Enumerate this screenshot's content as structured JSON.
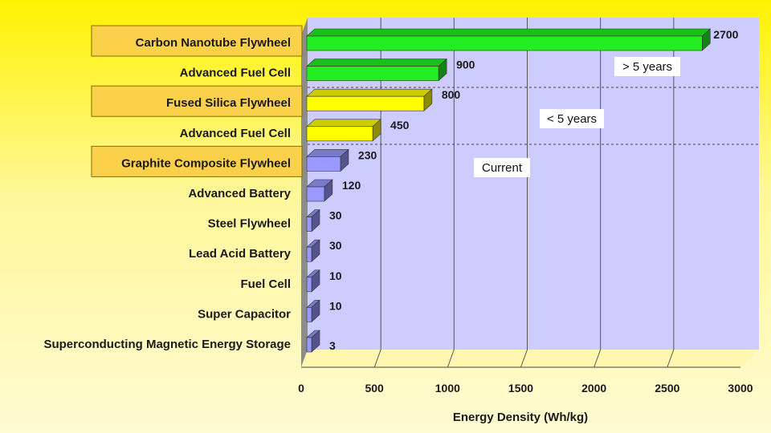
{
  "chart_data": {
    "type": "bar",
    "orientation": "horizontal",
    "categories": [
      "Carbon Nanotube Flywheel",
      "Advanced Fuel Cell",
      "Fused Silica Flywheel",
      "Advanced Fuel Cell",
      "Graphite Composite Flywheel",
      "Advanced Battery",
      "Steel Flywheel",
      "Lead Acid Battery",
      "Fuel Cell",
      "Super Capacitor",
      "Superconducting Magnetic Energy Storage"
    ],
    "values": [
      2700,
      900,
      800,
      450,
      230,
      120,
      30,
      30,
      10,
      10,
      3
    ],
    "value_labels": [
      "2700",
      "900",
      "800",
      "450",
      "230",
      "120",
      "30",
      "30",
      "10",
      "10",
      "3"
    ],
    "highlighted": [
      true,
      false,
      true,
      false,
      true,
      false,
      false,
      false,
      false,
      false,
      false
    ],
    "bar_groups": [
      "green",
      "green",
      "yellow",
      "yellow",
      "blue",
      "blue",
      "blue",
      "blue",
      "blue",
      "blue",
      "blue"
    ],
    "xlabel": "Energy Density (Wh/kg)",
    "ylabel": "",
    "title": "",
    "xlim": [
      0,
      3000
    ],
    "xticks": [
      0,
      500,
      1000,
      1500,
      2000,
      2500,
      3000
    ],
    "xtick_labels": [
      "0",
      "500",
      "1000",
      "1500",
      "2000",
      "2500",
      "3000"
    ],
    "grid": "vertical",
    "annotations": [
      "> 5 years",
      "< 5 years",
      "Current"
    ],
    "colors": {
      "green": "#22ee22",
      "yellow": "#ffff00",
      "blue": "#9999ff",
      "plot_bg": "#ccccff",
      "floor": "#fff7b0",
      "highlight_box": "#fbd04a"
    }
  }
}
